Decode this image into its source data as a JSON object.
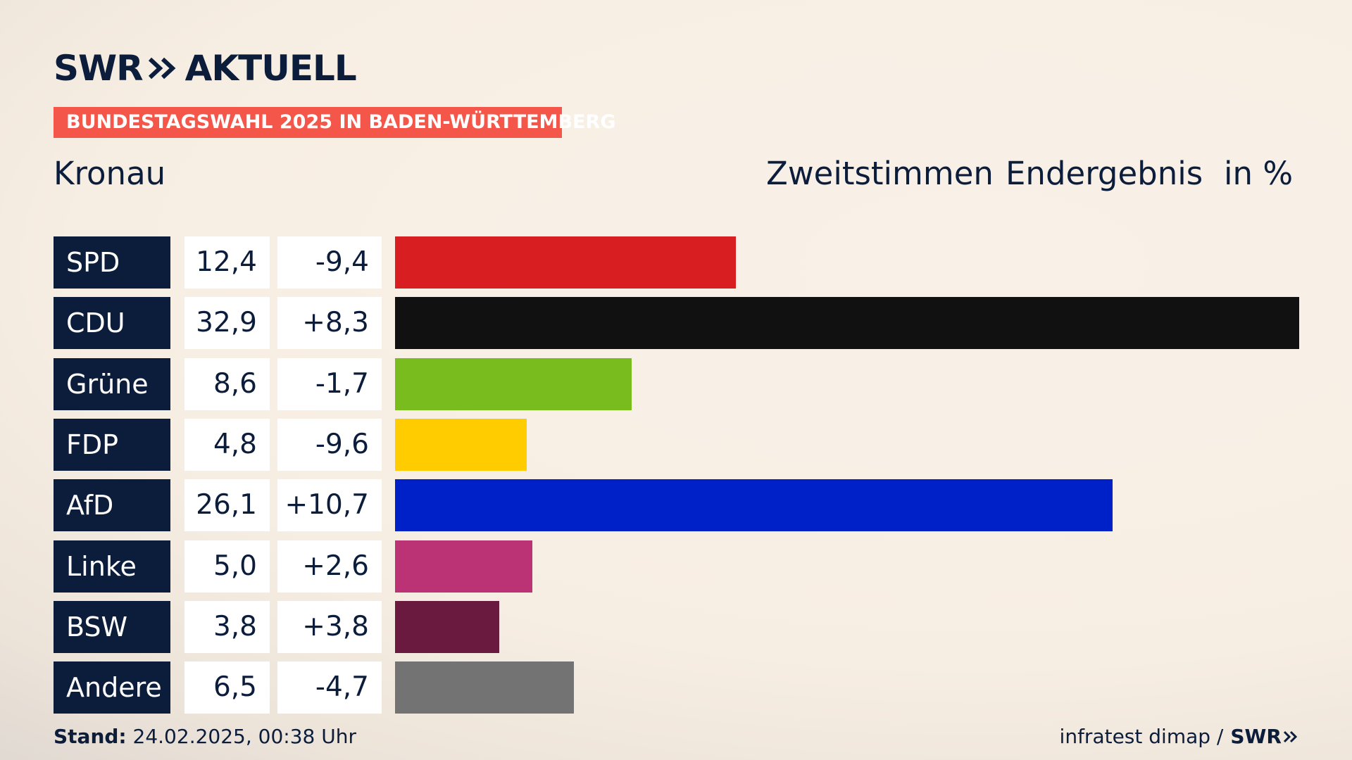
{
  "brand": {
    "logo_left": "SWR",
    "logo_right": "AKTUELL"
  },
  "banner": "BUNDESTAGSWAHL 2025 IN BADEN-WÜRTTEMBERG",
  "region": "Kronau",
  "header": {
    "vote_type": "Zweitstimmen",
    "result_type": "Endergebnis",
    "unit": "in %"
  },
  "chart_data": {
    "type": "bar",
    "categories": [
      "SPD",
      "CDU",
      "Grüne",
      "FDP",
      "AfD",
      "Linke",
      "BSW",
      "Andere"
    ],
    "values": [
      12.4,
      32.9,
      8.6,
      4.8,
      26.1,
      5.0,
      3.8,
      6.5
    ],
    "value_labels": [
      "12,4",
      "32,9",
      "8,6",
      "4,8",
      "26,1",
      "5,0",
      "3,8",
      "6,5"
    ],
    "change_labels": [
      "-9,4",
      "+8,3",
      "-1,7",
      "-9,6",
      "+10,7",
      "+2,6",
      "+3,8",
      "-4,7"
    ],
    "colors": [
      "#d81e20",
      "#111111",
      "#78bc1e",
      "#ffcc00",
      "#0020c8",
      "#bb3275",
      "#6a1a3f",
      "#737373"
    ],
    "xlim": [
      0,
      32.9
    ]
  },
  "footer": {
    "stand_label": "Stand:",
    "stand_value": "24.02.2025, 00:38 Uhr",
    "source": "infratest dimap /",
    "source_logo": "SWR"
  }
}
